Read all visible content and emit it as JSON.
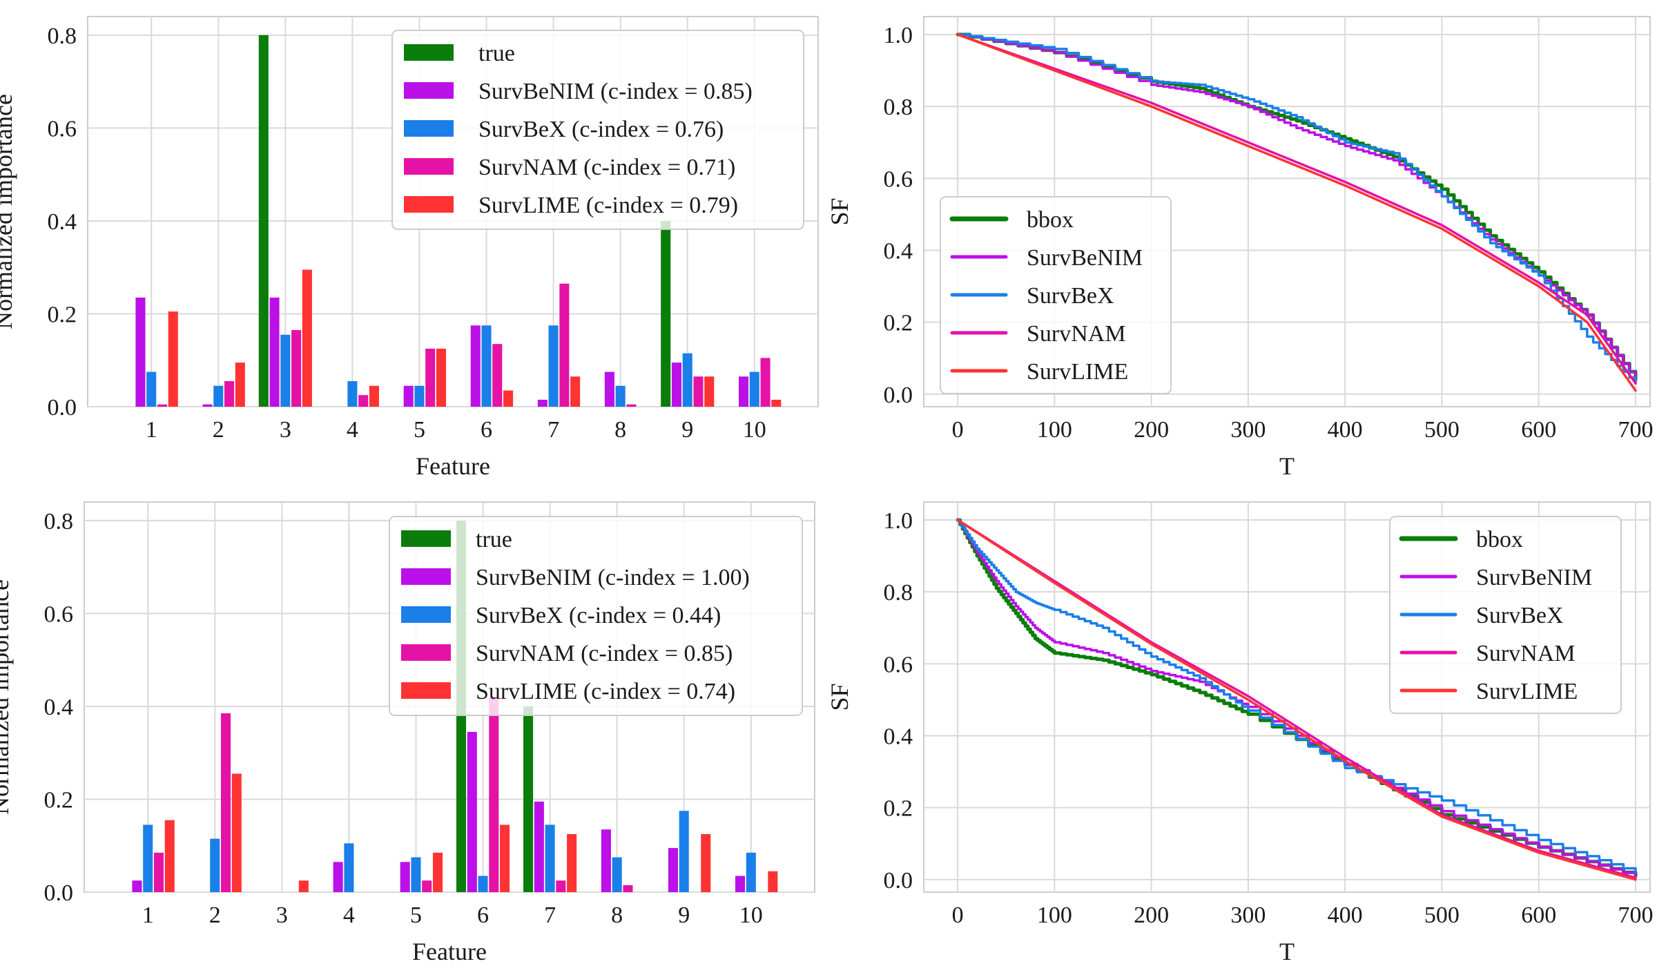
{
  "chart_data": [
    {
      "type": "bar",
      "xlabel": "Feature",
      "ylabel": "Normalized importance",
      "ylim": [
        0,
        0.84
      ],
      "yticks": [
        0.0,
        0.2,
        0.4,
        0.6,
        0.8
      ],
      "ytick_labels": [
        "0.0",
        "0.2",
        "0.4",
        "0.6",
        "0.8"
      ],
      "categories": [
        "1",
        "2",
        "3",
        "4",
        "5",
        "6",
        "7",
        "8",
        "9",
        "10"
      ],
      "grid": true,
      "legend_position": "top-right",
      "series": [
        {
          "name": "true",
          "color": "#0a7d0a",
          "values": [
            0,
            0,
            0.8,
            0,
            0,
            0,
            0,
            0,
            0.4,
            0
          ]
        },
        {
          "name": "SurvBeNIM (c-index = 0.85)",
          "color": "#bb10e8",
          "values": [
            0.235,
            0.005,
            0.235,
            0,
            0.045,
            0.175,
            0.015,
            0.075,
            0.095,
            0.065
          ]
        },
        {
          "name": "SurvBeX (c-index = 0.76)",
          "color": "#1a7fe8",
          "values": [
            0.075,
            0.045,
            0.155,
            0.055,
            0.045,
            0.175,
            0.175,
            0.045,
            0.115,
            0.075
          ]
        },
        {
          "name": "SurvNAM (c-index = 0.71)",
          "color": "#e512a6",
          "values": [
            0.005,
            0.055,
            0.165,
            0.025,
            0.125,
            0.135,
            0.265,
            0.005,
            0.065,
            0.105
          ]
        },
        {
          "name": "SurvLIME (c-index = 0.79)",
          "color": "#ff3333",
          "values": [
            0.205,
            0.095,
            0.295,
            0.045,
            0.125,
            0.035,
            0.065,
            0,
            0.065,
            0.015
          ]
        }
      ]
    },
    {
      "type": "line",
      "xlabel": "T",
      "ylabel": "SF",
      "xlim": [
        -35,
        715
      ],
      "ylim": [
        -0.035,
        1.05
      ],
      "xticks": [
        0,
        100,
        200,
        300,
        400,
        500,
        600,
        700
      ],
      "xtick_labels": [
        "0",
        "100",
        "200",
        "300",
        "400",
        "500",
        "600",
        "700"
      ],
      "yticks": [
        0.0,
        0.2,
        0.4,
        0.6,
        0.8,
        1.0
      ],
      "ytick_labels": [
        "0.0",
        "0.2",
        "0.4",
        "0.6",
        "0.8",
        "1.0"
      ],
      "grid": true,
      "legend_position": "center-left",
      "series": [
        {
          "name": "bbox",
          "color": "#0a7d0a",
          "width": 5,
          "stepped": true,
          "x": [
            0,
            100,
            200,
            250,
            300,
            350,
            400,
            450,
            500,
            550,
            600,
            650,
            700
          ],
          "y": [
            1.0,
            0.95,
            0.87,
            0.85,
            0.8,
            0.76,
            0.71,
            0.66,
            0.57,
            0.44,
            0.34,
            0.22,
            0.04
          ]
        },
        {
          "name": "SurvBeNIM",
          "color": "#bb10e8",
          "width": 3.5,
          "stepped": true,
          "x": [
            0,
            100,
            200,
            250,
            300,
            350,
            400,
            450,
            500,
            550,
            600,
            650,
            700
          ],
          "y": [
            1.0,
            0.95,
            0.86,
            0.84,
            0.8,
            0.74,
            0.69,
            0.65,
            0.55,
            0.43,
            0.33,
            0.22,
            0.04
          ]
        },
        {
          "name": "SurvBeX",
          "color": "#1a7fe8",
          "width": 3.5,
          "stepped": true,
          "x": [
            0,
            100,
            200,
            250,
            300,
            350,
            400,
            450,
            500,
            550,
            600,
            650,
            700
          ],
          "y": [
            1.0,
            0.96,
            0.87,
            0.86,
            0.82,
            0.77,
            0.7,
            0.67,
            0.55,
            0.42,
            0.33,
            0.16,
            0.03
          ]
        },
        {
          "name": "SurvNAM",
          "color": "#e512a6",
          "width": 3.5,
          "stepped": false,
          "x": [
            0,
            100,
            200,
            300,
            400,
            500,
            600,
            650,
            700
          ],
          "y": [
            1.0,
            0.905,
            0.81,
            0.7,
            0.59,
            0.47,
            0.31,
            0.22,
            0.03
          ]
        },
        {
          "name": "SurvLIME",
          "color": "#ff3333",
          "width": 3.5,
          "stepped": false,
          "x": [
            0,
            100,
            200,
            300,
            400,
            500,
            600,
            650,
            700
          ],
          "y": [
            1.0,
            0.9,
            0.8,
            0.69,
            0.58,
            0.46,
            0.3,
            0.2,
            0.01
          ]
        }
      ]
    },
    {
      "type": "bar",
      "xlabel": "Feature",
      "ylabel": "Normalized importance",
      "ylim": [
        0,
        0.84
      ],
      "yticks": [
        0.0,
        0.2,
        0.4,
        0.6,
        0.8
      ],
      "ytick_labels": [
        "0.0",
        "0.2",
        "0.4",
        "0.6",
        "0.8"
      ],
      "categories": [
        "1",
        "2",
        "3",
        "4",
        "5",
        "6",
        "7",
        "8",
        "9",
        "10"
      ],
      "grid": true,
      "legend_position": "top-right",
      "series": [
        {
          "name": "true",
          "color": "#0a7d0a",
          "values": [
            0,
            0,
            0,
            0,
            0,
            0.8,
            0.4,
            0,
            0,
            0
          ]
        },
        {
          "name": "SurvBeNIM (c-index = 1.00)",
          "color": "#bb10e8",
          "values": [
            0.025,
            0,
            0,
            0.065,
            0.065,
            0.345,
            0.195,
            0.135,
            0.095,
            0.035
          ]
        },
        {
          "name": "SurvBeX (c-index = 0.44)",
          "color": "#1a7fe8",
          "values": [
            0.145,
            0.115,
            0,
            0.105,
            0.075,
            0.035,
            0.145,
            0.075,
            0.175,
            0.085
          ]
        },
        {
          "name": "SurvNAM (c-index = 0.85)",
          "color": "#e512a6",
          "values": [
            0.085,
            0.385,
            0,
            0,
            0.025,
            0.42,
            0.025,
            0.015,
            0,
            0
          ]
        },
        {
          "name": "SurvLIME (c-index = 0.74)",
          "color": "#ff3333",
          "values": [
            0.155,
            0.255,
            0.025,
            0,
            0.085,
            0.145,
            0.125,
            0,
            0.125,
            0.045
          ]
        }
      ]
    },
    {
      "type": "line",
      "xlabel": "T",
      "ylabel": "SF",
      "xlim": [
        -35,
        715
      ],
      "ylim": [
        -0.035,
        1.05
      ],
      "xticks": [
        0,
        100,
        200,
        300,
        400,
        500,
        600,
        700
      ],
      "xtick_labels": [
        "0",
        "100",
        "200",
        "300",
        "400",
        "500",
        "600",
        "700"
      ],
      "yticks": [
        0.0,
        0.2,
        0.4,
        0.6,
        0.8,
        1.0
      ],
      "ytick_labels": [
        "0.0",
        "0.2",
        "0.4",
        "0.6",
        "0.8",
        "1.0"
      ],
      "grid": true,
      "legend_position": "top-right",
      "series": [
        {
          "name": "bbox",
          "color": "#0a7d0a",
          "width": 5,
          "stepped": true,
          "x": [
            0,
            20,
            40,
            60,
            80,
            100,
            150,
            200,
            250,
            300,
            400,
            500,
            600,
            700
          ],
          "y": [
            1.0,
            0.9,
            0.81,
            0.74,
            0.67,
            0.63,
            0.61,
            0.57,
            0.52,
            0.46,
            0.32,
            0.18,
            0.09,
            0.01
          ]
        },
        {
          "name": "SurvBeNIM",
          "color": "#bb10e8",
          "width": 3.5,
          "stepped": true,
          "x": [
            0,
            20,
            40,
            60,
            80,
            100,
            150,
            200,
            250,
            300,
            400,
            500,
            600,
            700
          ],
          "y": [
            1.0,
            0.91,
            0.83,
            0.76,
            0.7,
            0.66,
            0.63,
            0.58,
            0.55,
            0.48,
            0.32,
            0.19,
            0.09,
            0.01
          ]
        },
        {
          "name": "SurvBeX",
          "color": "#1a7fe8",
          "width": 3.5,
          "stepped": true,
          "x": [
            0,
            20,
            40,
            60,
            80,
            100,
            150,
            200,
            250,
            300,
            400,
            500,
            600,
            700
          ],
          "y": [
            1.0,
            0.92,
            0.86,
            0.8,
            0.77,
            0.75,
            0.7,
            0.62,
            0.56,
            0.47,
            0.31,
            0.22,
            0.11,
            0.02
          ]
        },
        {
          "name": "SurvNAM",
          "color": "#e512a6",
          "width": 3.5,
          "stepped": false,
          "x": [
            0,
            100,
            200,
            300,
            400,
            500,
            600,
            700
          ],
          "y": [
            1.0,
            0.83,
            0.66,
            0.51,
            0.34,
            0.18,
            0.08,
            0.005
          ]
        },
        {
          "name": "SurvLIME",
          "color": "#ff3333",
          "width": 3.5,
          "stepped": false,
          "x": [
            0,
            100,
            200,
            300,
            400,
            500,
            600,
            700
          ],
          "y": [
            1.0,
            0.825,
            0.655,
            0.5,
            0.33,
            0.175,
            0.075,
            0.0
          ]
        }
      ]
    }
  ]
}
